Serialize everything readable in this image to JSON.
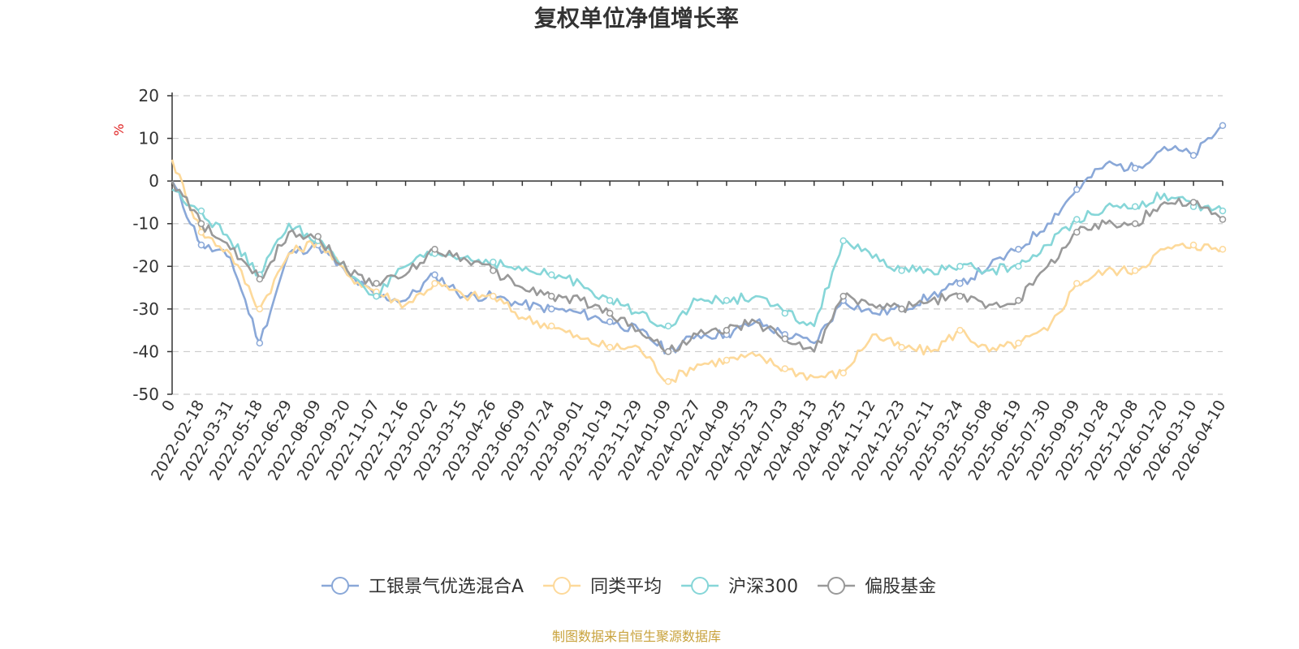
{
  "chart_data": {
    "type": "line",
    "title": "复权单位净值增长率",
    "ylabel": "%",
    "ylim": [
      -50,
      20
    ],
    "yticks": [
      20,
      10,
      0,
      -10,
      -20,
      -30,
      -40,
      -50
    ],
    "categories": [
      "0",
      "2022-02-18",
      "2022-03-31",
      "2022-05-18",
      "2022-06-29",
      "2022-08-09",
      "2022-09-20",
      "2022-11-07",
      "2022-12-16",
      "2023-02-02",
      "2023-03-15",
      "2023-04-26",
      "2023-06-09",
      "2023-07-24",
      "2023-09-01",
      "2023-10-19",
      "2023-11-29",
      "2024-01-09",
      "2024-02-27",
      "2024-04-09",
      "2024-05-23",
      "2024-07-03",
      "2024-08-13",
      "2024-09-25",
      "2024-11-12",
      "2024-12-23",
      "2025-02-11",
      "2025-03-24",
      "2025-05-08",
      "2025-06-19",
      "2025-07-30",
      "2025-09-09",
      "2025-10-28",
      "2025-12-08",
      "2026-01-20",
      "2026-03-10",
      "2026-04-10"
    ],
    "series": [
      {
        "name": "工银景气优选混合A",
        "color": "#8aa8d8",
        "values": [
          0,
          -15,
          -18,
          -38,
          -17,
          -15,
          -22,
          -27,
          -28,
          -22,
          -27,
          -27,
          -29,
          -30,
          -31,
          -33,
          -35,
          -40,
          -36,
          -36,
          -33,
          -36,
          -38,
          -28,
          -31,
          -30,
          -27,
          -24,
          -20,
          -16,
          -10,
          -2,
          4,
          3,
          8,
          6,
          13
        ]
      },
      {
        "name": "同类平均",
        "color": "#fdd99a",
        "values": [
          5,
          -12,
          -17,
          -30,
          -17,
          -14,
          -22,
          -26,
          -29,
          -24,
          -27,
          -27,
          -32,
          -34,
          -37,
          -39,
          -39,
          -47,
          -43,
          -42,
          -41,
          -44,
          -46,
          -45,
          -36,
          -39,
          -40,
          -35,
          -40,
          -38,
          -35,
          -24,
          -21,
          -21,
          -16,
          -15,
          -16
        ]
      },
      {
        "name": "沪深300",
        "color": "#86d6d8",
        "values": [
          -2,
          -7,
          -14,
          -22,
          -10,
          -14,
          -21,
          -27,
          -20,
          -17,
          -18,
          -19,
          -21,
          -22,
          -24,
          -28,
          -31,
          -34,
          -28,
          -28,
          -27,
          -31,
          -34,
          -14,
          -18,
          -21,
          -21,
          -20,
          -21,
          -20,
          -15,
          -9,
          -6,
          -6,
          -3,
          -6,
          -7
        ]
      },
      {
        "name": "偏股基金",
        "color": "#999999",
        "values": [
          0,
          -10,
          -16,
          -23,
          -12,
          -13,
          -21,
          -24,
          -22,
          -16,
          -18,
          -21,
          -25,
          -27,
          -28,
          -31,
          -35,
          -40,
          -36,
          -35,
          -33,
          -37,
          -40,
          -27,
          -29,
          -30,
          -28,
          -27,
          -29,
          -28,
          -20,
          -12,
          -10,
          -10,
          -5,
          -5,
          -9
        ]
      }
    ]
  },
  "source_note": "制图数据来自恒生聚源数据库"
}
